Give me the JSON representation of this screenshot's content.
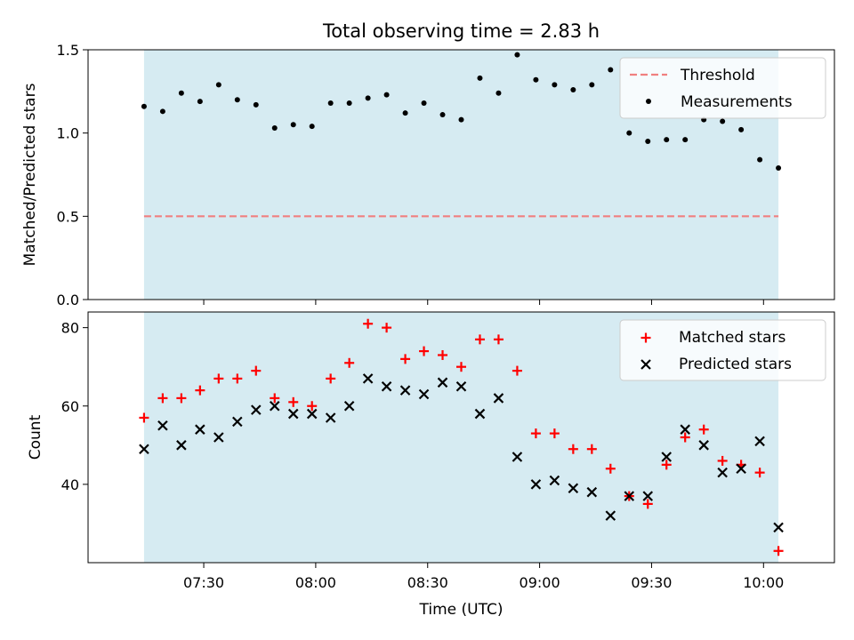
{
  "colors": {
    "observing_band": "#add8e6",
    "threshold": "#f08080",
    "measurement": "#000000",
    "matched": "#ff0000",
    "predicted": "#000000"
  },
  "chart_data": [
    {
      "type": "scatter",
      "title": "Total observing time = 2.83 h",
      "xlabel": "",
      "ylabel": "Matched/Predicted stars",
      "ylim": [
        0,
        1.5
      ],
      "yticks": [
        "0.0",
        "0.5",
        "1.0",
        "1.5"
      ],
      "grid": false,
      "legend": "upper right",
      "observing_window": [
        "07:14",
        "10:04"
      ],
      "threshold": {
        "name": "Threshold",
        "value": 0.5,
        "style": "dashed"
      },
      "series": [
        {
          "name": "Measurements",
          "x": [
            "07:14",
            "07:19",
            "07:24",
            "07:29",
            "07:34",
            "07:39",
            "07:44",
            "07:49",
            "07:54",
            "07:59",
            "08:04",
            "08:09",
            "08:14",
            "08:19",
            "08:24",
            "08:29",
            "08:34",
            "08:39",
            "08:44",
            "08:49",
            "08:54",
            "08:59",
            "09:04",
            "09:09",
            "09:14",
            "09:19",
            "09:24",
            "09:29",
            "09:34",
            "09:39",
            "09:44",
            "09:49",
            "09:54",
            "09:59",
            "10:04"
          ],
          "y": [
            1.16,
            1.13,
            1.24,
            1.19,
            1.29,
            1.2,
            1.17,
            1.03,
            1.05,
            1.04,
            1.18,
            1.18,
            1.21,
            1.23,
            1.12,
            1.18,
            1.11,
            1.08,
            1.33,
            1.24,
            1.47,
            1.32,
            1.29,
            1.26,
            1.29,
            1.38,
            1.0,
            0.95,
            0.96,
            0.96,
            1.08,
            1.07,
            1.02,
            0.84,
            0.79
          ]
        }
      ]
    },
    {
      "type": "scatter",
      "title": "",
      "xlabel": "Time (UTC)",
      "ylabel": "Count",
      "ylim": [
        20,
        84
      ],
      "yticks": [
        "40",
        "60",
        "80"
      ],
      "xticks": [
        "07:30",
        "08:00",
        "08:30",
        "09:00",
        "09:30",
        "10:00"
      ],
      "grid": false,
      "legend": "upper right",
      "observing_window": [
        "07:14",
        "10:04"
      ],
      "series": [
        {
          "name": "Matched stars",
          "marker": "+",
          "x": [
            "07:14",
            "07:19",
            "07:24",
            "07:29",
            "07:34",
            "07:39",
            "07:44",
            "07:49",
            "07:54",
            "07:59",
            "08:04",
            "08:09",
            "08:14",
            "08:19",
            "08:24",
            "08:29",
            "08:34",
            "08:39",
            "08:44",
            "08:49",
            "08:54",
            "08:59",
            "09:04",
            "09:09",
            "09:14",
            "09:19",
            "09:24",
            "09:29",
            "09:34",
            "09:39",
            "09:44",
            "09:49",
            "09:54",
            "09:59",
            "10:04"
          ],
          "y": [
            57,
            62,
            62,
            64,
            67,
            67,
            69,
            62,
            61,
            60,
            67,
            71,
            81,
            80,
            72,
            74,
            73,
            70,
            77,
            77,
            69,
            53,
            53,
            49,
            49,
            44,
            37,
            35,
            45,
            52,
            54,
            46,
            45,
            43,
            23
          ]
        },
        {
          "name": "Predicted stars",
          "marker": "x",
          "x": [
            "07:14",
            "07:19",
            "07:24",
            "07:29",
            "07:34",
            "07:39",
            "07:44",
            "07:49",
            "07:54",
            "07:59",
            "08:04",
            "08:09",
            "08:14",
            "08:19",
            "08:24",
            "08:29",
            "08:34",
            "08:39",
            "08:44",
            "08:49",
            "08:54",
            "08:59",
            "09:04",
            "09:09",
            "09:14",
            "09:19",
            "09:24",
            "09:29",
            "09:34",
            "09:39",
            "09:44",
            "09:49",
            "09:54",
            "09:59",
            "10:04"
          ],
          "y": [
            49,
            55,
            50,
            54,
            52,
            56,
            59,
            60,
            58,
            58,
            57,
            60,
            67,
            65,
            64,
            63,
            66,
            65,
            58,
            62,
            47,
            40,
            41,
            39,
            38,
            32,
            37,
            37,
            47,
            54,
            50,
            43,
            44,
            51,
            29
          ]
        }
      ]
    }
  ]
}
